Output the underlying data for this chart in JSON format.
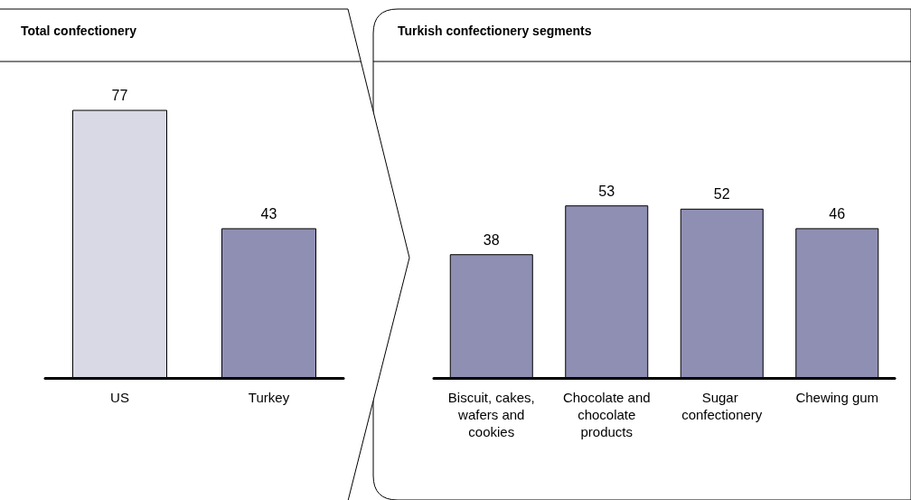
{
  "chart_data": [
    {
      "type": "bar",
      "title": "Total confectionery",
      "categories": [
        "US",
        "Turkey"
      ],
      "values": [
        77,
        43
      ],
      "colors": [
        "#d9d9e6",
        "#8f8fb4"
      ],
      "data_labels": true
    },
    {
      "type": "bar",
      "title": "Turkish confectionery segments",
      "categories": [
        "Biscuit, cakes, wafers and cookies",
        "Chocolate and chocolate products",
        "Sugar confectionery",
        "Chewing gum"
      ],
      "values": [
        38,
        53,
        52,
        46
      ],
      "color": "#8f8fb4",
      "data_labels": true
    }
  ]
}
